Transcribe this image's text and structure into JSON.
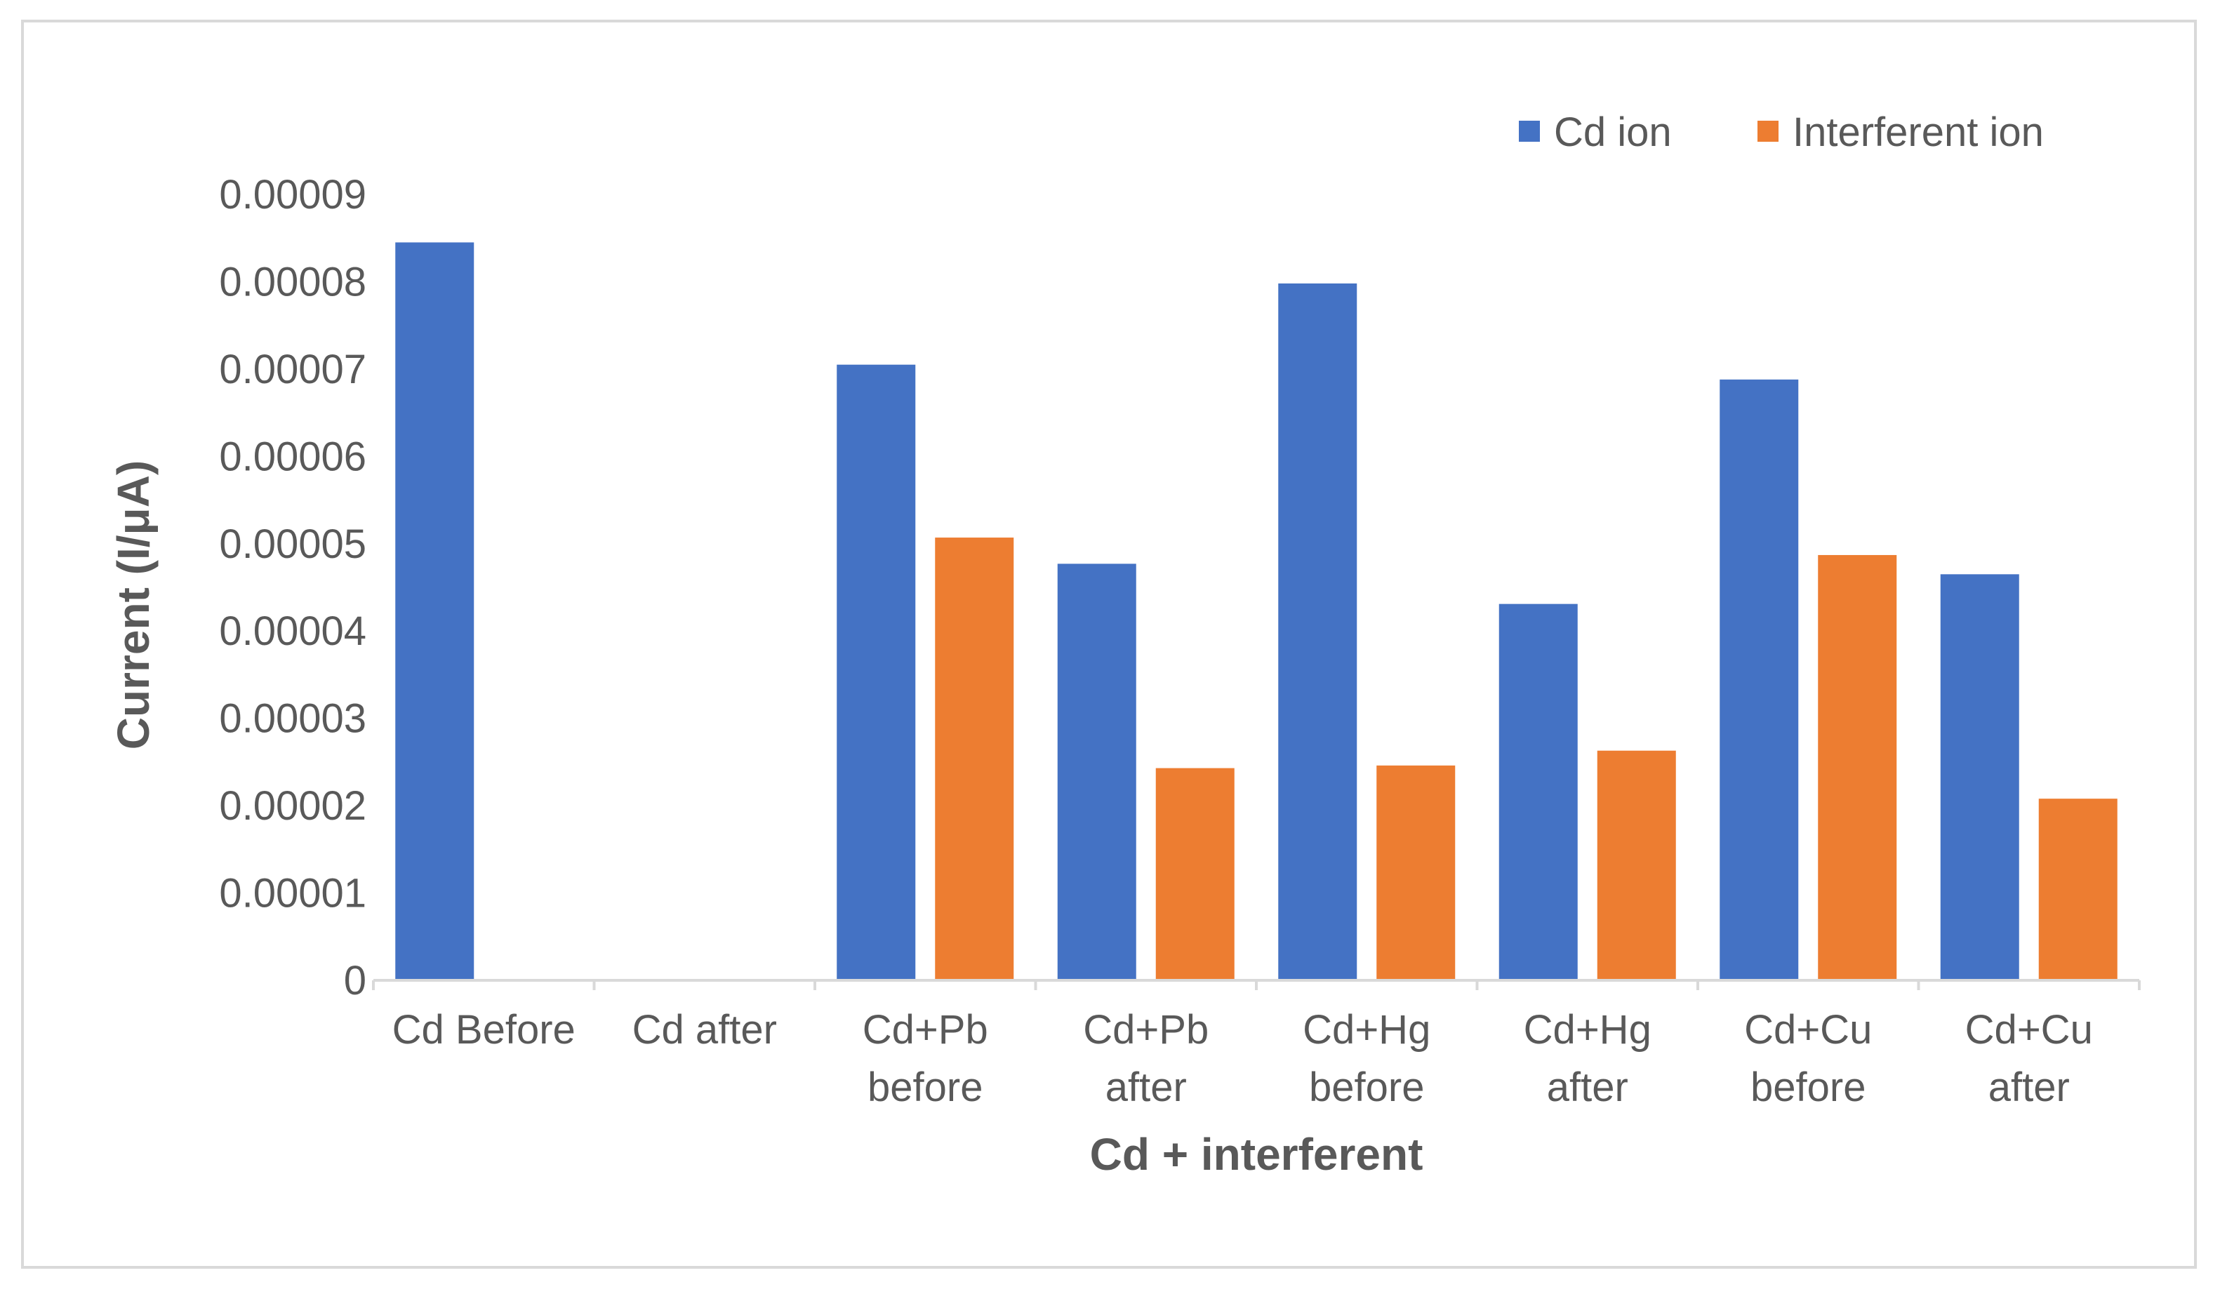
{
  "chart_data": {
    "type": "bar",
    "title": "",
    "xlabel": "Cd + interferent",
    "ylabel": "Current (I/μA)",
    "ylim": [
      0,
      9e-05
    ],
    "yticks": [
      "0",
      "0.00001",
      "0.00002",
      "0.00003",
      "0.00004",
      "0.00005",
      "0.00006",
      "0.00007",
      "0.00008",
      "0.00009"
    ],
    "categories": [
      [
        "Cd Before"
      ],
      [
        "Cd after"
      ],
      [
        "Cd+Pb",
        "before"
      ],
      [
        "Cd+Pb",
        "after"
      ],
      [
        "Cd+Hg",
        "before"
      ],
      [
        "Cd+Hg",
        "after"
      ],
      [
        "Cd+Cu",
        "before"
      ],
      [
        "Cd+Cu",
        "after"
      ]
    ],
    "series": [
      {
        "name": "Cd ion",
        "color": "#4472c4",
        "values": [
          8.45e-05,
          0,
          7.05e-05,
          4.77e-05,
          7.98e-05,
          4.31e-05,
          6.88e-05,
          4.65e-05
        ]
      },
      {
        "name": "Interferent ion",
        "color": "#ed7d31",
        "values": [
          0,
          0,
          5.07e-05,
          2.43e-05,
          2.46e-05,
          2.63e-05,
          4.87e-05,
          2.08e-05
        ]
      }
    ],
    "legend_position": "top-right",
    "grid": false
  }
}
